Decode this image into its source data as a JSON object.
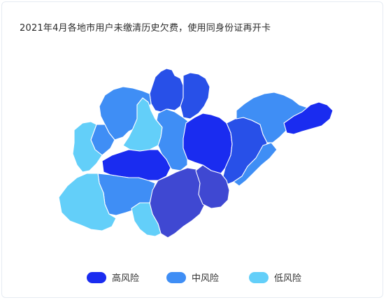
{
  "title": "2021年4月各地市用户未缴清历史欠费，使用同身份证再开卡",
  "colors": {
    "high": "#1a2cf0",
    "medium": "#3f8ef5",
    "low": "#63cff9",
    "deep": "#3f48d2",
    "mid_blue": "#2850e8"
  },
  "legend": [
    {
      "label": "高风险",
      "level": "high"
    },
    {
      "label": "中风险",
      "level": "medium"
    },
    {
      "label": "低风险",
      "level": "low"
    }
  ],
  "regions": [
    {
      "level": "mid_blue"
    },
    {
      "level": "mid_blue"
    },
    {
      "level": "medium"
    },
    {
      "level": "medium"
    },
    {
      "level": "low"
    },
    {
      "level": "low"
    },
    {
      "level": "medium"
    },
    {
      "level": "high"
    },
    {
      "level": "medium"
    },
    {
      "level": "low"
    },
    {
      "level": "high"
    },
    {
      "level": "mid_blue"
    },
    {
      "level": "medium"
    },
    {
      "level": "high"
    },
    {
      "level": "medium"
    },
    {
      "level": "deep"
    },
    {
      "level": "deep"
    },
    {
      "level": "low"
    }
  ]
}
